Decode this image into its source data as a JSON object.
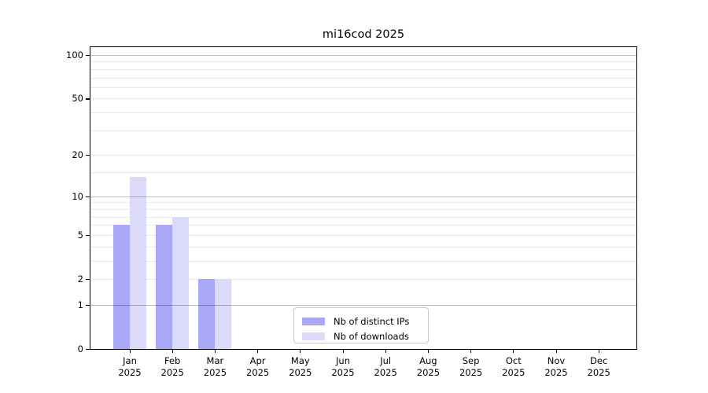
{
  "title": "mi16cod 2025",
  "colors": {
    "distinct_ips_bar": "#a8a8f6",
    "downloads_bar": "#dbdbf9",
    "grid_major": "rgba(0,0,0,0.26)",
    "grid_minor": "rgba(0,0,0,0.08)",
    "axis_line": "#000000",
    "legend_border": "#c8c8c8",
    "background": "#ffffff"
  },
  "legend": {
    "items": [
      {
        "label": "Nb of distinct IPs",
        "color_key": "distinct_ips_bar"
      },
      {
        "label": "Nb of downloads",
        "color_key": "downloads_bar"
      }
    ]
  },
  "chart_data": {
    "type": "bar",
    "title": "mi16cod 2025",
    "categories": [
      "Jan 2025",
      "Feb 2025",
      "Mar 2025",
      "Apr 2025",
      "May 2025",
      "Jun 2025",
      "Jul 2025",
      "Aug 2025",
      "Sep 2025",
      "Oct 2025",
      "Nov 2025",
      "Dec 2025"
    ],
    "series": [
      {
        "name": "Nb of distinct IPs",
        "values": [
          6,
          6,
          2,
          0,
          0,
          0,
          0,
          0,
          0,
          0,
          0,
          0
        ]
      },
      {
        "name": "Nb of downloads",
        "values": [
          14,
          7,
          2,
          0,
          0,
          0,
          0,
          0,
          0,
          0,
          0,
          0
        ]
      }
    ],
    "xlabel": "",
    "ylabel": "",
    "yscale": "log10(1+y)",
    "ylim": [
      0,
      113
    ],
    "ytick_values": [
      100,
      50,
      20,
      10,
      5,
      2,
      1,
      0
    ],
    "ytick_labels": [
      "100",
      "50",
      "20",
      "10",
      "5",
      "2",
      "1",
      "0"
    ],
    "grid_major_values": [
      1,
      10,
      100
    ],
    "grid_minor_values": [
      2,
      3,
      4,
      5,
      6,
      7,
      8,
      9,
      15,
      20,
      30,
      40,
      50,
      60,
      70,
      80,
      90
    ],
    "grid": true,
    "legend_position": "lower center"
  }
}
